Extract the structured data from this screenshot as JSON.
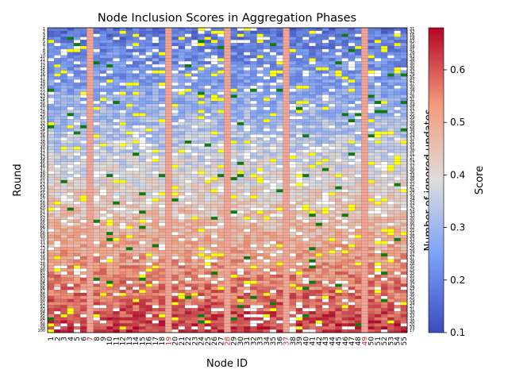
{
  "chart_data": {
    "type": "heatmap",
    "title": "Node Inclusion Scores in Aggregation Phases",
    "xlabel": "Node ID",
    "ylabel": "Round",
    "right_axis_label": "Number of ignored updates",
    "colorbar_label": "Score",
    "colormap": "coolwarm",
    "score_range": [
      0.1,
      0.68
    ],
    "colorbar_ticks": [
      0.1,
      0.2,
      0.3,
      0.4,
      0.5,
      0.6
    ],
    "rounds": 100,
    "nodes": 55,
    "highlighted_nodes": [
      7,
      19,
      28,
      37,
      49
    ],
    "highlight_color": "#d62728",
    "cell_markers": {
      "green": "#0a7d0a",
      "yellow": "#ffff00",
      "empty": "#ffffff"
    },
    "ignored_updates_per_round": [
      31,
      32,
      16,
      18,
      43,
      35,
      34,
      41,
      29,
      43,
      38,
      30,
      30,
      36,
      32,
      29,
      35,
      42,
      37,
      30,
      38,
      37,
      26,
      31,
      35,
      34,
      31,
      32,
      35,
      39,
      35,
      38,
      29,
      38,
      34,
      34,
      32,
      31,
      35,
      31,
      30,
      31,
      37,
      41,
      37,
      37,
      36,
      36,
      33,
      38,
      35,
      32,
      41,
      38,
      37,
      39,
      34,
      33,
      37,
      29,
      34,
      33,
      30,
      30,
      36,
      32,
      35,
      31,
      38,
      33,
      32,
      35,
      29,
      39,
      32,
      37,
      36,
      28,
      35,
      25,
      35,
      35,
      31,
      36,
      32,
      29,
      31,
      36,
      25,
      29,
      34,
      37,
      31,
      30,
      33,
      31,
      30,
      20,
      33,
      17
    ]
  }
}
